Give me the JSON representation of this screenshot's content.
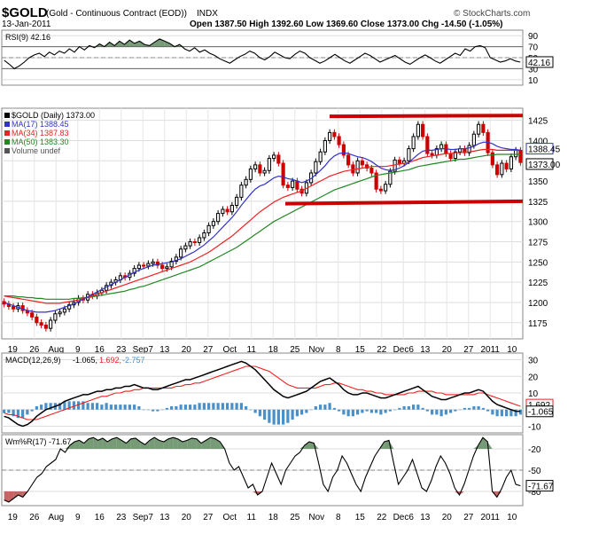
{
  "header": {
    "symbol": "$GOLD",
    "name": "(Gold - Continuous Contract (EOD))",
    "exchange": "INDX",
    "date": "13-Jan-2011",
    "ohlc": "Open 1387.50  High 1392.60  Low 1369.60  Close 1373.00  Chg -14.50 (-1.05%)",
    "brand": "© StockCharts.com",
    "chg_color": "#cc0000"
  },
  "chart_data": [
    {
      "type": "line",
      "panel": "rsi",
      "legend": "RSI(9) 42.16",
      "y_ticks": [
        90,
        70,
        50,
        30,
        10
      ],
      "ylim": [
        0,
        100
      ],
      "last_label": "42.16",
      "series": [
        {
          "values": [
            45,
            38,
            30,
            35,
            42,
            50,
            55,
            58,
            52,
            60,
            55,
            62,
            58,
            66,
            60,
            70,
            64,
            72,
            68,
            75,
            70,
            78,
            72,
            80,
            74,
            82,
            76,
            80,
            74,
            72,
            78,
            84,
            80,
            76,
            70,
            74,
            66,
            62,
            68,
            60,
            64,
            58,
            54,
            48,
            44,
            40,
            46,
            52,
            56,
            62,
            58,
            50,
            46,
            52,
            60,
            55,
            50,
            48,
            56,
            62,
            58,
            50,
            45,
            40,
            44,
            50,
            56,
            50,
            44,
            40,
            46,
            52,
            58,
            54,
            48,
            42,
            46,
            50,
            54,
            48,
            42,
            38,
            44,
            50,
            55,
            50,
            44,
            40,
            46,
            52,
            58,
            54,
            66,
            62,
            70,
            72,
            68,
            50,
            46,
            42,
            44,
            48,
            44,
            42
          ]
        }
      ]
    },
    {
      "type": "line",
      "panel": "price",
      "legend": [
        "$GOLD (Daily) 1373.00",
        "MA(17) 1388.45",
        "MA(34) 1387.83",
        "MA(50) 1383.30",
        "Volume undef"
      ],
      "colors": {
        "price": "#000000",
        "ma17": "#3333cc",
        "ma34": "#ee2222",
        "ma50": "#228822",
        "up": "#000000",
        "down": "#cc0000",
        "resist": "#cc0000"
      },
      "y_ticks": [
        1425,
        1400,
        1375,
        1350,
        1325,
        1300,
        1275,
        1250,
        1225,
        1200,
        1175
      ],
      "ylim": [
        1155,
        1440
      ],
      "x_ticks": [
        "19",
        "26",
        "Aug",
        "9",
        "16",
        "23",
        "Sep7",
        "13",
        "20",
        "27",
        "Oct",
        "11",
        "18",
        "25",
        "Nov",
        "8",
        "15",
        "22",
        "Dec6",
        "13",
        "20",
        "27",
        "2011",
        "10"
      ],
      "closes": [
        1198,
        1195,
        1192,
        1196,
        1190,
        1187,
        1182,
        1175,
        1172,
        1168,
        1178,
        1186,
        1188,
        1192,
        1197,
        1200,
        1205,
        1203,
        1210,
        1208,
        1212,
        1215,
        1221,
        1225,
        1228,
        1233,
        1231,
        1236,
        1242,
        1246,
        1245,
        1248,
        1250,
        1246,
        1242,
        1244,
        1251,
        1256,
        1266,
        1270,
        1275,
        1274,
        1280,
        1286,
        1295,
        1300,
        1310,
        1315,
        1312,
        1320,
        1330,
        1345,
        1352,
        1365,
        1370,
        1360,
        1363,
        1378,
        1382,
        1372,
        1345,
        1342,
        1350,
        1340,
        1335,
        1348,
        1360,
        1374,
        1386,
        1400,
        1410,
        1405,
        1395,
        1382,
        1370,
        1360,
        1375,
        1370,
        1366,
        1360,
        1340,
        1338,
        1346,
        1362,
        1376,
        1372,
        1375,
        1390,
        1405,
        1420,
        1405,
        1384,
        1382,
        1390,
        1395,
        1384,
        1378,
        1386,
        1390,
        1385,
        1394,
        1408,
        1420,
        1410,
        1385,
        1370,
        1358,
        1372,
        1365,
        1380,
        1388,
        1373
      ],
      "ma17": [
        1200,
        1198,
        1196,
        1194,
        1192,
        1190,
        1189,
        1188,
        1188,
        1188,
        1189,
        1190,
        1192,
        1194,
        1196,
        1198,
        1201,
        1204,
        1207,
        1210,
        1213,
        1216,
        1219,
        1222,
        1225,
        1228,
        1231,
        1234,
        1237,
        1240,
        1242,
        1244,
        1246,
        1247,
        1248,
        1249,
        1250,
        1252,
        1254,
        1257,
        1260,
        1263,
        1267,
        1271,
        1276,
        1281,
        1287,
        1293,
        1299,
        1305,
        1312,
        1320,
        1327,
        1334,
        1340,
        1344,
        1346,
        1350,
        1354,
        1356,
        1355,
        1353,
        1352,
        1350,
        1348,
        1350,
        1353,
        1358,
        1363,
        1369,
        1376,
        1381,
        1384,
        1385,
        1384,
        1382,
        1380,
        1379,
        1377,
        1374,
        1370,
        1366,
        1364,
        1363,
        1364,
        1366,
        1369,
        1373,
        1378,
        1383,
        1387,
        1388,
        1388,
        1389,
        1390,
        1390,
        1389,
        1389,
        1390,
        1390,
        1391,
        1393,
        1396,
        1398,
        1398,
        1396,
        1393,
        1391,
        1390,
        1389,
        1389,
        1388
      ],
      "ma34": [
        1208,
        1207,
        1206,
        1205,
        1204,
        1203,
        1202,
        1201,
        1200,
        1199,
        1199,
        1199,
        1199,
        1200,
        1201,
        1202,
        1203,
        1205,
        1206,
        1208,
        1210,
        1212,
        1214,
        1216,
        1218,
        1220,
        1222,
        1224,
        1226,
        1228,
        1230,
        1232,
        1234,
        1236,
        1238,
        1240,
        1242,
        1244,
        1246,
        1248,
        1250,
        1253,
        1256,
        1259,
        1262,
        1266,
        1270,
        1274,
        1278,
        1282,
        1287,
        1292,
        1297,
        1302,
        1307,
        1312,
        1316,
        1320,
        1324,
        1327,
        1330,
        1332,
        1334,
        1336,
        1338,
        1341,
        1344,
        1347,
        1350,
        1353,
        1356,
        1358,
        1360,
        1362,
        1363,
        1364,
        1365,
        1366,
        1367,
        1368,
        1368,
        1368,
        1368,
        1369,
        1370,
        1371,
        1372,
        1373,
        1375,
        1377,
        1379,
        1380,
        1381,
        1382,
        1383,
        1384,
        1384,
        1385,
        1385,
        1386,
        1386,
        1387,
        1388,
        1389,
        1389,
        1389,
        1388,
        1388,
        1388,
        1388,
        1388,
        1388
      ],
      "ma50": [
        1208,
        1208,
        1208,
        1207,
        1207,
        1206,
        1206,
        1205,
        1205,
        1204,
        1204,
        1204,
        1204,
        1204,
        1204,
        1205,
        1205,
        1206,
        1206,
        1207,
        1208,
        1209,
        1210,
        1211,
        1212,
        1213,
        1214,
        1216,
        1217,
        1219,
        1220,
        1222,
        1224,
        1226,
        1228,
        1230,
        1232,
        1234,
        1236,
        1238,
        1240,
        1242,
        1244,
        1247,
        1250,
        1253,
        1256,
        1259,
        1262,
        1265,
        1268,
        1272,
        1276,
        1280,
        1284,
        1288,
        1292,
        1296,
        1300,
        1303,
        1306,
        1309,
        1312,
        1315,
        1318,
        1321,
        1324,
        1327,
        1330,
        1333,
        1336,
        1339,
        1341,
        1343,
        1345,
        1347,
        1349,
        1351,
        1353,
        1355,
        1357,
        1358,
        1359,
        1360,
        1361,
        1362,
        1363,
        1364,
        1366,
        1368,
        1369,
        1370,
        1371,
        1372,
        1373,
        1374,
        1375,
        1376,
        1377,
        1377,
        1378,
        1379,
        1380,
        1381,
        1382,
        1382,
        1383,
        1383,
        1383,
        1383,
        1383,
        1383
      ],
      "resistance": [
        1430,
        1431
      ],
      "support": [
        1322,
        1325
      ],
      "last_labels": [
        "1388.45",
        "1373.00"
      ]
    },
    {
      "type": "line",
      "panel": "macd",
      "legend": [
        "MACD(12,26,9)",
        "-1.065,",
        "1.692,",
        "-2.757"
      ],
      "colors": {
        "macd": "#000000",
        "signal": "#ee2222",
        "hist": "#4a90c8"
      },
      "y_ticks": [
        30,
        20,
        10,
        0,
        -10
      ],
      "ylim": [
        -14,
        34
      ],
      "last_labels": [
        "1.692",
        "-1.065"
      ],
      "macd": [
        -4,
        -5,
        -7,
        -9,
        -10,
        -9,
        -7,
        -4,
        -2,
        0,
        1,
        2,
        3,
        5,
        6,
        7,
        8,
        9,
        9,
        10,
        11,
        11,
        12,
        12,
        13,
        13,
        14,
        14,
        15,
        14,
        13,
        13,
        12,
        12,
        13,
        14,
        15,
        16,
        17,
        18,
        18,
        19,
        20,
        21,
        22,
        23,
        24,
        25,
        26,
        27,
        28,
        29,
        28,
        26,
        24,
        21,
        18,
        15,
        12,
        10,
        8,
        7,
        8,
        9,
        10,
        11,
        13,
        15,
        17,
        18,
        19,
        17,
        15,
        12,
        10,
        9,
        9,
        10,
        10,
        9,
        8,
        7,
        7,
        8,
        9,
        10,
        11,
        12,
        13,
        14,
        12,
        10,
        8,
        7,
        6,
        6,
        7,
        8,
        9,
        10,
        10,
        11,
        12,
        11,
        8,
        5,
        3,
        2,
        1,
        0,
        -1,
        -1
      ],
      "signal": [
        -2,
        -3,
        -3,
        -4,
        -5,
        -6,
        -6,
        -6,
        -5,
        -4,
        -3,
        -2,
        -1,
        0,
        1,
        2,
        3,
        4,
        5,
        6,
        7,
        8,
        8,
        9,
        10,
        10,
        11,
        11,
        12,
        12,
        13,
        13,
        13,
        13,
        13,
        13,
        13,
        14,
        14,
        15,
        15,
        16,
        16,
        17,
        18,
        19,
        20,
        21,
        22,
        23,
        24,
        25,
        26,
        26,
        26,
        25,
        24,
        23,
        21,
        19,
        17,
        15,
        14,
        13,
        13,
        13,
        13,
        13,
        14,
        15,
        15,
        16,
        16,
        15,
        14,
        13,
        12,
        12,
        11,
        11,
        10,
        10,
        9,
        9,
        9,
        9,
        9,
        10,
        10,
        11,
        11,
        11,
        11,
        10,
        10,
        9,
        9,
        9,
        9,
        9,
        9,
        9,
        10,
        10,
        9,
        8,
        7,
        6,
        5,
        4,
        3,
        2
      ]
    },
    {
      "type": "line",
      "panel": "williams",
      "legend": "Wm%R(17) -71.67",
      "y_ticks": [
        -20,
        -50,
        -80
      ],
      "ylim": [
        -100,
        0
      ],
      "last_label": "-71.67",
      "series": [
        {
          "values": [
            -92,
            -95,
            -90,
            -85,
            -88,
            -80,
            -70,
            -60,
            -55,
            -45,
            -40,
            -35,
            -20,
            -25,
            -15,
            -10,
            -8,
            -12,
            -6,
            -4,
            -8,
            -5,
            -10,
            -6,
            -4,
            -8,
            -12,
            -6,
            -5,
            -10,
            -14,
            -8,
            -4,
            -8,
            -10,
            -6,
            -4,
            -6,
            -10,
            -8,
            -5,
            -6,
            -12,
            -8,
            -4,
            -6,
            -10,
            -20,
            -40,
            -50,
            -45,
            -60,
            -75,
            -70,
            -85,
            -80,
            -60,
            -40,
            -55,
            -70,
            -50,
            -40,
            -30,
            -25,
            -15,
            -10,
            -12,
            -40,
            -70,
            -80,
            -60,
            -50,
            -30,
            -40,
            -55,
            -70,
            -80,
            -60,
            -45,
            -30,
            -20,
            -10,
            -8,
            -40,
            -70,
            -60,
            -50,
            -35,
            -55,
            -75,
            -80,
            -65,
            -45,
            -30,
            -40,
            -55,
            -75,
            -85,
            -70,
            -50,
            -30,
            -15,
            -4,
            -10,
            -80,
            -88,
            -76,
            -60,
            -50,
            -70,
            -72
          ]
        }
      ]
    }
  ]
}
